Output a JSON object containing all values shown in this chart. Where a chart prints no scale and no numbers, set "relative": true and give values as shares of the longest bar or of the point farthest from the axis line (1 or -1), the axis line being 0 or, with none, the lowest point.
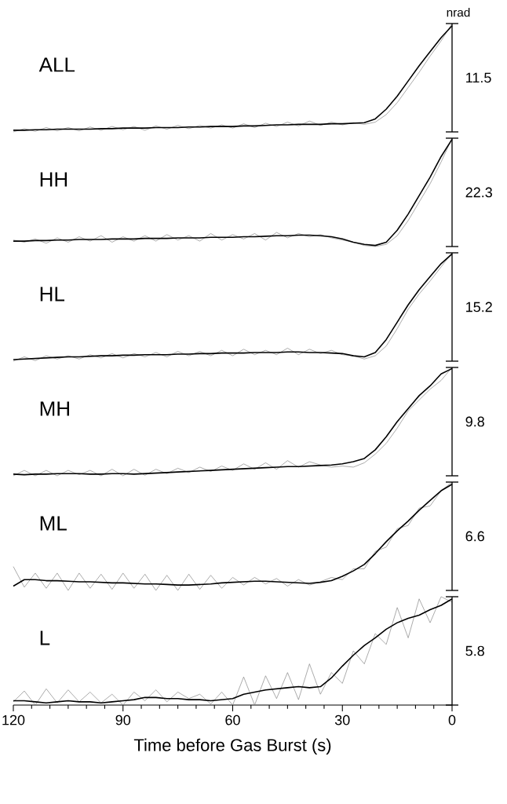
{
  "chart_data": [
    {
      "type": "line",
      "title": "ALL",
      "ylabel": "nrad",
      "relative": true,
      "annotations": [
        "11.5"
      ],
      "xlim": [
        120,
        0
      ],
      "tick_labels": false,
      "x": [
        120,
        117,
        114,
        111,
        108,
        105,
        102,
        99,
        96,
        93,
        90,
        87,
        84,
        81,
        78,
        75,
        72,
        69,
        66,
        63,
        60,
        57,
        54,
        51,
        48,
        45,
        42,
        39,
        36,
        33,
        30,
        27,
        24,
        21,
        18,
        15,
        12,
        9,
        6,
        3,
        0
      ],
      "series": [
        {
          "color": "#808080",
          "values": [
            0.0,
            0.03,
            0.005,
            0.04,
            0.01,
            0.04,
            0.01,
            0.045,
            0.015,
            0.05,
            0.02,
            0.05,
            0.015,
            0.055,
            0.025,
            0.06,
            0.03,
            0.06,
            0.035,
            0.065,
            0.035,
            0.075,
            0.04,
            0.08,
            0.05,
            0.09,
            0.055,
            0.1,
            0.06,
            0.09,
            0.065,
            0.085,
            0.07,
            0.09,
            0.16,
            0.27,
            0.41,
            0.55,
            0.7,
            0.84,
            1.0
          ]
        },
        {
          "color": "#000000",
          "values": [
            0.015,
            0.015,
            0.02,
            0.02,
            0.025,
            0.025,
            0.025,
            0.025,
            0.03,
            0.03,
            0.035,
            0.035,
            0.035,
            0.04,
            0.04,
            0.04,
            0.045,
            0.045,
            0.05,
            0.05,
            0.05,
            0.055,
            0.055,
            0.06,
            0.065,
            0.065,
            0.07,
            0.07,
            0.07,
            0.075,
            0.075,
            0.08,
            0.085,
            0.12,
            0.21,
            0.33,
            0.47,
            0.61,
            0.74,
            0.87,
            0.98
          ]
        }
      ]
    },
    {
      "type": "line",
      "title": "HH",
      "relative": true,
      "annotations": [
        "22.3"
      ],
      "xlim": [
        120,
        0
      ],
      "tick_labels": false,
      "x": [
        120,
        117,
        114,
        111,
        108,
        105,
        102,
        99,
        96,
        93,
        90,
        87,
        84,
        81,
        78,
        75,
        72,
        69,
        66,
        63,
        60,
        57,
        54,
        51,
        48,
        45,
        42,
        39,
        36,
        33,
        30,
        27,
        24,
        21,
        18,
        15,
        12,
        9,
        6,
        3,
        0
      ],
      "series": [
        {
          "color": "#808080",
          "values": [
            0.06,
            0.04,
            0.07,
            0.03,
            0.08,
            0.04,
            0.09,
            0.05,
            0.1,
            0.04,
            0.09,
            0.05,
            0.1,
            0.05,
            0.11,
            0.06,
            0.1,
            0.05,
            0.12,
            0.06,
            0.11,
            0.07,
            0.12,
            0.06,
            0.13,
            0.08,
            0.12,
            0.09,
            0.11,
            0.08,
            0.06,
            0.04,
            0.01,
            0.0,
            0.02,
            0.1,
            0.24,
            0.41,
            0.58,
            0.78,
            1.0
          ]
        },
        {
          "color": "#000000",
          "values": [
            0.05,
            0.05,
            0.055,
            0.055,
            0.06,
            0.06,
            0.065,
            0.065,
            0.065,
            0.07,
            0.07,
            0.07,
            0.075,
            0.075,
            0.075,
            0.08,
            0.08,
            0.08,
            0.085,
            0.085,
            0.085,
            0.09,
            0.09,
            0.095,
            0.1,
            0.1,
            0.105,
            0.105,
            0.1,
            0.09,
            0.07,
            0.04,
            0.02,
            0.01,
            0.04,
            0.15,
            0.3,
            0.47,
            0.64,
            0.83,
            0.99
          ]
        }
      ]
    },
    {
      "type": "line",
      "title": "HL",
      "relative": true,
      "annotations": [
        "15.2"
      ],
      "xlim": [
        120,
        0
      ],
      "tick_labels": false,
      "x": [
        120,
        117,
        114,
        111,
        108,
        105,
        102,
        99,
        96,
        93,
        90,
        87,
        84,
        81,
        78,
        75,
        72,
        69,
        66,
        63,
        60,
        57,
        54,
        51,
        48,
        45,
        42,
        39,
        36,
        33,
        30,
        27,
        24,
        21,
        18,
        15,
        12,
        9,
        6,
        3,
        0
      ],
      "series": [
        {
          "color": "#808080",
          "values": [
            0.0,
            0.04,
            0.005,
            0.05,
            0.02,
            0.05,
            0.02,
            0.06,
            0.03,
            0.07,
            0.03,
            0.07,
            0.04,
            0.08,
            0.04,
            0.09,
            0.05,
            0.09,
            0.05,
            0.1,
            0.05,
            0.11,
            0.06,
            0.1,
            0.06,
            0.12,
            0.06,
            0.11,
            0.07,
            0.1,
            0.06,
            0.05,
            0.02,
            0.05,
            0.14,
            0.3,
            0.48,
            0.62,
            0.74,
            0.87,
            1.0
          ]
        },
        {
          "color": "#000000",
          "values": [
            0.015,
            0.02,
            0.025,
            0.03,
            0.035,
            0.04,
            0.04,
            0.045,
            0.05,
            0.05,
            0.055,
            0.055,
            0.06,
            0.06,
            0.06,
            0.065,
            0.065,
            0.07,
            0.07,
            0.075,
            0.075,
            0.075,
            0.08,
            0.08,
            0.08,
            0.085,
            0.085,
            0.08,
            0.08,
            0.075,
            0.07,
            0.05,
            0.04,
            0.08,
            0.2,
            0.36,
            0.52,
            0.66,
            0.78,
            0.9,
            0.99
          ]
        }
      ]
    },
    {
      "type": "line",
      "title": "MH",
      "relative": true,
      "annotations": [
        "9.8"
      ],
      "xlim": [
        120,
        0
      ],
      "tick_labels": false,
      "x": [
        120,
        117,
        114,
        111,
        108,
        105,
        102,
        99,
        96,
        93,
        90,
        87,
        84,
        81,
        78,
        75,
        72,
        69,
        66,
        63,
        60,
        57,
        54,
        51,
        48,
        45,
        42,
        39,
        36,
        33,
        30,
        27,
        24,
        21,
        18,
        15,
        12,
        9,
        6,
        3,
        0
      ],
      "series": [
        {
          "color": "#808080",
          "values": [
            0.0,
            0.05,
            0.0,
            0.05,
            0.0,
            0.05,
            0.01,
            0.05,
            0.0,
            0.06,
            0.0,
            0.06,
            0.005,
            0.06,
            0.02,
            0.07,
            0.03,
            0.08,
            0.04,
            0.09,
            0.05,
            0.11,
            0.06,
            0.12,
            0.06,
            0.14,
            0.08,
            0.13,
            0.1,
            0.08,
            0.09,
            0.08,
            0.12,
            0.2,
            0.3,
            0.44,
            0.6,
            0.7,
            0.8,
            0.88,
            1.0
          ]
        },
        {
          "color": "#000000",
          "values": [
            0.015,
            0.01,
            0.015,
            0.015,
            0.02,
            0.02,
            0.02,
            0.015,
            0.015,
            0.02,
            0.02,
            0.015,
            0.02,
            0.025,
            0.03,
            0.035,
            0.04,
            0.045,
            0.05,
            0.055,
            0.06,
            0.065,
            0.07,
            0.075,
            0.08,
            0.085,
            0.085,
            0.09,
            0.095,
            0.1,
            0.11,
            0.13,
            0.16,
            0.24,
            0.36,
            0.5,
            0.62,
            0.74,
            0.83,
            0.94,
            0.99
          ]
        }
      ]
    },
    {
      "type": "line",
      "title": "ML",
      "relative": true,
      "annotations": [
        "6.6"
      ],
      "xlim": [
        120,
        0
      ],
      "tick_labels": false,
      "x": [
        120,
        117,
        114,
        111,
        108,
        105,
        102,
        99,
        96,
        93,
        90,
        87,
        84,
        81,
        78,
        75,
        72,
        69,
        66,
        63,
        60,
        57,
        54,
        51,
        48,
        45,
        42,
        39,
        36,
        33,
        30,
        27,
        24,
        21,
        18,
        15,
        12,
        9,
        6,
        3,
        0
      ],
      "series": [
        {
          "color": "#808080",
          "values": [
            0.22,
            0.03,
            0.16,
            0.02,
            0.16,
            0.0,
            0.16,
            0.02,
            0.15,
            0.01,
            0.16,
            0.02,
            0.15,
            0.0,
            0.14,
            0.0,
            0.15,
            0.01,
            0.14,
            0.02,
            0.12,
            0.05,
            0.12,
            0.06,
            0.11,
            0.04,
            0.1,
            0.05,
            0.08,
            0.12,
            0.1,
            0.2,
            0.2,
            0.36,
            0.4,
            0.57,
            0.6,
            0.76,
            0.78,
            0.92,
            1.0
          ]
        },
        {
          "color": "#000000",
          "values": [
            0.04,
            0.1,
            0.1,
            0.09,
            0.09,
            0.085,
            0.08,
            0.08,
            0.075,
            0.07,
            0.07,
            0.065,
            0.06,
            0.06,
            0.055,
            0.05,
            0.05,
            0.055,
            0.06,
            0.07,
            0.075,
            0.08,
            0.085,
            0.085,
            0.08,
            0.075,
            0.07,
            0.065,
            0.075,
            0.09,
            0.13,
            0.18,
            0.24,
            0.34,
            0.45,
            0.55,
            0.64,
            0.74,
            0.83,
            0.92,
            0.98
          ]
        }
      ]
    },
    {
      "type": "line",
      "title": "L",
      "relative": true,
      "annotations": [
        "5.8"
      ],
      "xlabel": "Time before Gas Burst (s)",
      "xlim": [
        120,
        0
      ],
      "xticks": [
        120,
        90,
        60,
        30,
        0
      ],
      "tick_labels": "x",
      "x": [
        120,
        117,
        114,
        111,
        108,
        105,
        102,
        99,
        96,
        93,
        90,
        87,
        84,
        81,
        78,
        75,
        72,
        69,
        66,
        63,
        60,
        57,
        54,
        51,
        48,
        45,
        42,
        39,
        36,
        33,
        30,
        27,
        24,
        21,
        18,
        15,
        12,
        9,
        6,
        3,
        0
      ],
      "series": [
        {
          "color": "#808080",
          "values": [
            0.03,
            0.13,
            0.0,
            0.15,
            0.02,
            0.14,
            0.03,
            0.12,
            0.02,
            0.1,
            0.0,
            0.12,
            0.04,
            0.14,
            0.03,
            0.12,
            0.06,
            0.1,
            0.01,
            0.12,
            0.0,
            0.26,
            0.0,
            0.27,
            0.06,
            0.3,
            0.05,
            0.38,
            0.1,
            0.3,
            0.2,
            0.5,
            0.38,
            0.66,
            0.56,
            0.9,
            0.62,
            0.98,
            0.76,
            1.0,
            0.95
          ]
        },
        {
          "color": "#000000",
          "values": [
            0.04,
            0.04,
            0.03,
            0.02,
            0.03,
            0.04,
            0.03,
            0.03,
            0.02,
            0.03,
            0.04,
            0.05,
            0.07,
            0.07,
            0.06,
            0.06,
            0.05,
            0.05,
            0.04,
            0.05,
            0.06,
            0.1,
            0.12,
            0.14,
            0.15,
            0.16,
            0.17,
            0.16,
            0.17,
            0.25,
            0.36,
            0.46,
            0.55,
            0.62,
            0.7,
            0.76,
            0.8,
            0.83,
            0.88,
            0.92,
            0.98
          ]
        }
      ]
    }
  ]
}
